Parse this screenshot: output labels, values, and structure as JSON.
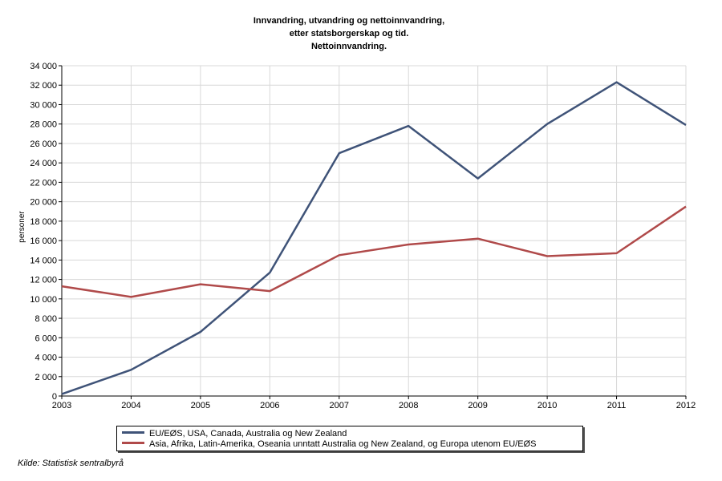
{
  "chart_data": {
    "type": "line",
    "title_lines": [
      "Innvandring, utvandring og nettoinnvandring,",
      "etter statsborgerskap og tid.",
      "Nettoinnvandring."
    ],
    "ylabel": "personer",
    "xlabel": "",
    "x": [
      "2003",
      "2004",
      "2005",
      "2006",
      "2007",
      "2008",
      "2009",
      "2010",
      "2011",
      "2012"
    ],
    "ylim": [
      0,
      34000
    ],
    "yticks": [
      0,
      2000,
      4000,
      6000,
      8000,
      10000,
      12000,
      14000,
      16000,
      18000,
      20000,
      22000,
      24000,
      26000,
      28000,
      30000,
      32000,
      34000
    ],
    "ytick_labels": [
      "0",
      "2 000",
      "4 000",
      "6 000",
      "8 000",
      "10 000",
      "12 000",
      "14 000",
      "16 000",
      "18 000",
      "20 000",
      "22 000",
      "24 000",
      "26 000",
      "28 000",
      "30 000",
      "32 000",
      "34 000"
    ],
    "grid": true,
    "legend_position": "bottom",
    "series": [
      {
        "name": "EU/EØS, USA, Canada, Australia og New Zealand",
        "color": "#3f5378",
        "values": [
          200,
          2700,
          6600,
          12700,
          25000,
          27800,
          22400,
          28000,
          32300,
          27900
        ]
      },
      {
        "name": "Asia, Afrika, Latin-Amerika, Oseania unntatt Australia og New Zealand, og Europa utenom EU/EØS",
        "color": "#b04a4a",
        "values": [
          11300,
          10200,
          11500,
          10800,
          14500,
          15600,
          16200,
          14400,
          14700,
          19500
        ]
      }
    ]
  },
  "source": "Kilde: Statistisk sentralbyrå"
}
